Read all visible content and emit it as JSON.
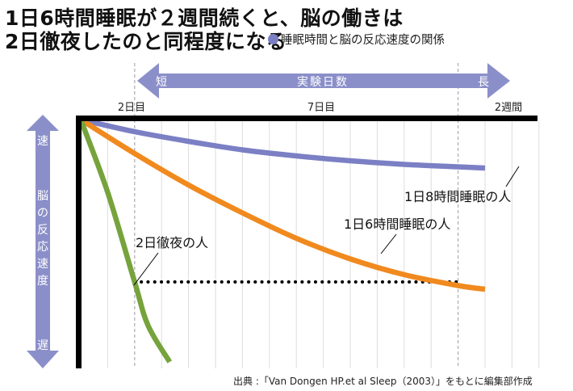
{
  "title_line1": "1日6時間睡眠が２週間続くと、脳の働きは",
  "title_line2": "2日徹夜したのと同程度になる",
  "subtitle": "睡眠時間と脳の反応速度の関係",
  "source": "出典 :「Van Dongen HP.et al Sleep（2003）」をもとに編集部作成",
  "colors": {
    "accent": "#8b8fc9",
    "eight_hours": "#7b7fc4",
    "six_hours": "#f08a1f",
    "all_nighter": "#76a33c",
    "axis": "#000000",
    "grid": "#dddddd"
  },
  "x_arrow": {
    "label": "実験日数",
    "short": "短",
    "long": "長"
  },
  "y_arrow": {
    "label": "脳の反応速度",
    "fast": "速",
    "slow": "遅"
  },
  "chart_data": {
    "type": "line",
    "title": "睡眠時間と脳の反応速度の関係",
    "xlabel": "実験日数",
    "ylabel": "脳の反応速度",
    "x_ticks": [
      {
        "label": "2日目",
        "day": 2
      },
      {
        "label": "7日目",
        "day": 7
      },
      {
        "label": "2週間",
        "day": 14
      }
    ],
    "xlim": [
      0,
      15
    ],
    "ylim": [
      0,
      100
    ],
    "grid": true,
    "series": [
      {
        "name": "1日8時間睡眠の人",
        "color": "#7b7fc4",
        "x": [
          0,
          2,
          4,
          6,
          8,
          10,
          12,
          14,
          15
        ],
        "y": [
          0,
          5,
          9,
          12.5,
          15,
          17,
          18.5,
          19.5,
          20
        ]
      },
      {
        "name": "1日6時間睡眠の人",
        "color": "#f08a1f",
        "x": [
          0,
          2,
          4,
          6,
          8,
          10,
          12,
          14,
          15
        ],
        "y": [
          0,
          14,
          27,
          38.5,
          49,
          57.5,
          64,
          68.5,
          70
        ]
      },
      {
        "name": "2日徹夜の人",
        "color": "#76a33c",
        "x": [
          0,
          1,
          2,
          2.5,
          3.3
        ],
        "y": [
          0,
          30,
          67,
          85,
          100
        ]
      }
    ],
    "annotations": [
      {
        "text": "2日徹夜の人"
      },
      {
        "text": "1日6時間睡眠の人"
      },
      {
        "text": "1日8時間睡眠の人"
      }
    ],
    "reference_line": {
      "from_day": 2,
      "to_day": 14,
      "value": 67,
      "style": "dotted"
    }
  }
}
